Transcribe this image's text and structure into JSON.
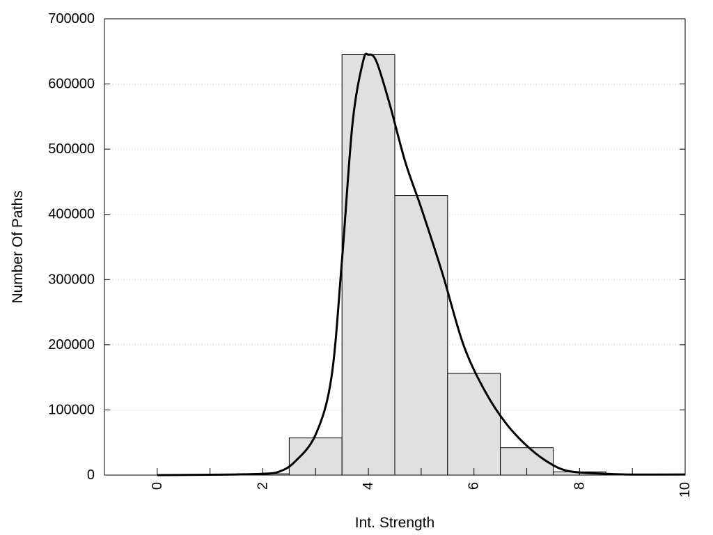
{
  "chart_data": {
    "type": "bar",
    "title": "",
    "xlabel": "Int. Strength",
    "ylabel": "Number Of Paths",
    "xlim": [
      -1,
      10
    ],
    "ylim": [
      0,
      700000
    ],
    "x_ticks": [
      0,
      2,
      4,
      6,
      8,
      10
    ],
    "y_ticks": [
      0,
      100000,
      200000,
      300000,
      400000,
      500000,
      600000,
      700000
    ],
    "grid": "horizontal dotted",
    "bar_color": "#e0e0e0",
    "bar_edge_color": "#000000",
    "series": [
      {
        "kind": "histogram",
        "bin_width": 1,
        "x": [
          0,
          1,
          2,
          3,
          4,
          5,
          6,
          7,
          8,
          9,
          10
        ],
        "values": [
          0,
          0,
          2000,
          57000,
          645000,
          429000,
          156000,
          42000,
          5000,
          0,
          0
        ]
      },
      {
        "kind": "smooth line",
        "x": [
          0,
          1,
          1.5,
          2,
          2.3,
          2.6,
          3.0,
          3.3,
          3.5,
          3.7,
          3.9,
          4.0,
          4.15,
          4.4,
          4.7,
          5.0,
          5.4,
          5.8,
          6.2,
          6.6,
          7.0,
          7.4,
          7.8,
          8.5,
          9,
          10
        ],
        "values": [
          0,
          500,
          1000,
          2000,
          5000,
          20000,
          62000,
          150000,
          330000,
          540000,
          635000,
          645000,
          635000,
          570000,
          480000,
          410000,
          310000,
          200000,
          130000,
          80000,
          45000,
          20000,
          6000,
          2000,
          800,
          1000
        ]
      }
    ]
  }
}
